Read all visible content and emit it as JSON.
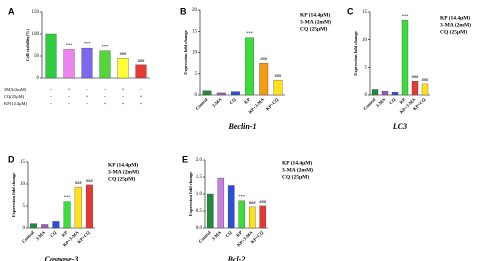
{
  "chart_data": [
    {
      "type": "bar",
      "panel": "A",
      "ylabel": "Cell viability(%)",
      "values": [
        100,
        65,
        68,
        62,
        45,
        30
      ],
      "colors": [
        "#2ecc40",
        "#ee82ee",
        "#7b68ee",
        "#55d43c",
        "#ffff33",
        "#e53935"
      ],
      "annotations": [
        null,
        "***",
        "***",
        "***",
        "###",
        "###"
      ],
      "ylim": [
        0,
        150
      ],
      "yticks": [
        0,
        50,
        100,
        150
      ],
      "table": {
        "rows": [
          {
            "label": "3MA(2mM)",
            "signs": [
              "-",
              "+",
              "-",
              "-",
              "+",
              "-"
            ]
          },
          {
            "label": "CQ(25μM)",
            "signs": [
              "-",
              "-",
              "+",
              "-",
              "-",
              "+"
            ]
          },
          {
            "label": "KP(14.4μM)",
            "signs": [
              "-",
              "-",
              "-",
              "+",
              "+",
              "+"
            ]
          }
        ]
      }
    },
    {
      "type": "bar",
      "panel": "B",
      "xlabel": "Beclin-1",
      "ylabel": "Expression fold change",
      "notes": [
        "KP (14.4μM)",
        "3-MA (2mM)",
        "CQ (25μM)"
      ],
      "categories": [
        "Control",
        "3-MA",
        "CQ",
        "KP",
        "KP+3-MA",
        "KP+CQ"
      ],
      "values": [
        1,
        0.5,
        0.8,
        13.5,
        7.5,
        3.5
      ],
      "colors": [
        "#1e8c3a",
        "#9b59b6",
        "#2b4fd8",
        "#3ddc3d",
        "#f39c12",
        "#ffe11a"
      ],
      "annotations": [
        null,
        null,
        null,
        "***",
        "###",
        "###"
      ],
      "ylim": [
        0,
        20
      ],
      "yticks": [
        0,
        5,
        10,
        15,
        20
      ]
    },
    {
      "type": "bar",
      "panel": "C",
      "xlabel": "LC3",
      "ylabel": "Expression fold change",
      "notes": [
        "KP (14.4μM)",
        "3-MA (2mM)",
        "CQ (25μM)"
      ],
      "categories": [
        "Control",
        "3-MA",
        "CQ",
        "KP",
        "KP+3-MA",
        "KP+CQ"
      ],
      "values": [
        1,
        0.7,
        0.5,
        13.5,
        2.5,
        2
      ],
      "colors": [
        "#1e8c3a",
        "#9b59b6",
        "#2b4fd8",
        "#3ddc3d",
        "#e53935",
        "#ffe11a"
      ],
      "annotations": [
        null,
        null,
        null,
        "***",
        "###",
        "###"
      ],
      "ylim": [
        0,
        15
      ],
      "yticks": [
        0,
        5,
        10,
        15
      ]
    },
    {
      "type": "bar",
      "panel": "D",
      "xlabel": "Caspase-3",
      "ylabel": "Expression fold change",
      "notes": [
        "KP (14.4μM)",
        "3-MA (2mM)",
        "CQ (25μM)"
      ],
      "categories": [
        "Control",
        "3-MA",
        "CQ",
        "KP",
        "KP+3-MA",
        "KP+CQ"
      ],
      "values": [
        1,
        0.8,
        1.5,
        6,
        9.3,
        9.8
      ],
      "colors": [
        "#1e8c3a",
        "#9b59b6",
        "#2b4fd8",
        "#3ddc3d",
        "#ffe11a",
        "#e53935"
      ],
      "annotations": [
        null,
        null,
        null,
        "***",
        "###",
        "###"
      ],
      "ylim": [
        0,
        15
      ],
      "yticks": [
        0,
        5,
        10,
        15
      ]
    },
    {
      "type": "bar",
      "panel": "E",
      "xlabel": "Bcl-2",
      "ylabel": "Expression fold change",
      "notes": [
        "KP (14.4μM)",
        "3-MA (2mM)",
        "CQ (25μM)"
      ],
      "categories": [
        "Control",
        "3-MA",
        "CQ",
        "KP",
        "KP+3-MA",
        "KP+CQ"
      ],
      "values": [
        1.0,
        1.47,
        1.25,
        0.8,
        0.62,
        0.65
      ],
      "colors": [
        "#1e8c3a",
        "#c77ee0",
        "#2b4fd8",
        "#3ddc3d",
        "#ffe11a",
        "#e53935"
      ],
      "annotations": [
        null,
        null,
        null,
        "***",
        "###",
        "###"
      ],
      "ylim": [
        0,
        2
      ],
      "yticks": [
        {
          "value": 0,
          "label": "0.0"
        },
        0.5,
        {
          "value": 1,
          "label": "1.0"
        },
        1.5,
        {
          "value": 2,
          "label": "2.0"
        }
      ]
    }
  ]
}
